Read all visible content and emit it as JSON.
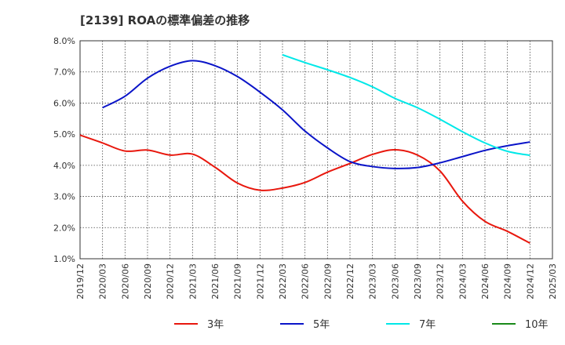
{
  "title": "[2139]  ROAの標準偏差の推移",
  "chart_data": {
    "type": "line",
    "title": "[2139]  ROAの標準偏差の推移",
    "xlabel": "",
    "ylabel": "",
    "ylim": [
      1.0,
      8.0
    ],
    "yticks": [
      "1.0%",
      "2.0%",
      "3.0%",
      "4.0%",
      "5.0%",
      "6.0%",
      "7.0%",
      "8.0%"
    ],
    "yvalues": [
      1.0,
      2.0,
      3.0,
      4.0,
      5.0,
      6.0,
      7.0,
      8.0
    ],
    "xticks": [
      "2019/12",
      "2020/03",
      "2020/06",
      "2020/09",
      "2020/12",
      "2021/03",
      "2021/06",
      "2021/09",
      "2021/12",
      "2022/03",
      "2022/06",
      "2022/09",
      "2022/12",
      "2023/03",
      "2023/06",
      "2023/09",
      "2023/12",
      "2024/03",
      "2024/06",
      "2024/09",
      "2024/12",
      "2025/03"
    ],
    "grid": true,
    "legend_position": "bottom",
    "series": [
      {
        "name": "3年",
        "color": "#e8170d",
        "points": [
          [
            "2019/12",
            4.97
          ],
          [
            "2020/03",
            4.72
          ],
          [
            "2020/06",
            4.46
          ],
          [
            "2020/09",
            4.49
          ],
          [
            "2020/12",
            4.33
          ],
          [
            "2021/03",
            4.36
          ],
          [
            "2021/06",
            3.94
          ],
          [
            "2021/09",
            3.43
          ],
          [
            "2021/12",
            3.2
          ],
          [
            "2022/03",
            3.27
          ],
          [
            "2022/06",
            3.45
          ],
          [
            "2022/09",
            3.78
          ],
          [
            "2022/12",
            4.06
          ],
          [
            "2023/03",
            4.35
          ],
          [
            "2023/06",
            4.5
          ],
          [
            "2023/09",
            4.33
          ],
          [
            "2023/12",
            3.82
          ],
          [
            "2024/03",
            2.85
          ],
          [
            "2024/06",
            2.2
          ],
          [
            "2024/09",
            1.88
          ],
          [
            "2024/12",
            1.5
          ]
        ]
      },
      {
        "name": "5年",
        "color": "#0a14c8",
        "points": [
          [
            "2020/03",
            5.85
          ],
          [
            "2020/06",
            6.22
          ],
          [
            "2020/09",
            6.8
          ],
          [
            "2020/12",
            7.18
          ],
          [
            "2021/03",
            7.36
          ],
          [
            "2021/06",
            7.2
          ],
          [
            "2021/09",
            6.85
          ],
          [
            "2021/12",
            6.35
          ],
          [
            "2022/03",
            5.78
          ],
          [
            "2022/06",
            5.1
          ],
          [
            "2022/09",
            4.56
          ],
          [
            "2022/12",
            4.12
          ],
          [
            "2023/03",
            3.96
          ],
          [
            "2023/06",
            3.9
          ],
          [
            "2023/09",
            3.93
          ],
          [
            "2023/12",
            4.08
          ],
          [
            "2024/03",
            4.28
          ],
          [
            "2024/06",
            4.48
          ],
          [
            "2024/09",
            4.63
          ],
          [
            "2024/12",
            4.75
          ]
        ]
      },
      {
        "name": "7年",
        "color": "#00e8e8",
        "points": [
          [
            "2022/03",
            7.55
          ],
          [
            "2022/06",
            7.3
          ],
          [
            "2022/09",
            7.07
          ],
          [
            "2022/12",
            6.82
          ],
          [
            "2023/03",
            6.52
          ],
          [
            "2023/06",
            6.15
          ],
          [
            "2023/09",
            5.85
          ],
          [
            "2023/12",
            5.48
          ],
          [
            "2024/03",
            5.08
          ],
          [
            "2024/06",
            4.72
          ],
          [
            "2024/09",
            4.45
          ],
          [
            "2024/12",
            4.32
          ]
        ]
      },
      {
        "name": "10年",
        "color": "#1a8a1a",
        "points": []
      }
    ]
  }
}
